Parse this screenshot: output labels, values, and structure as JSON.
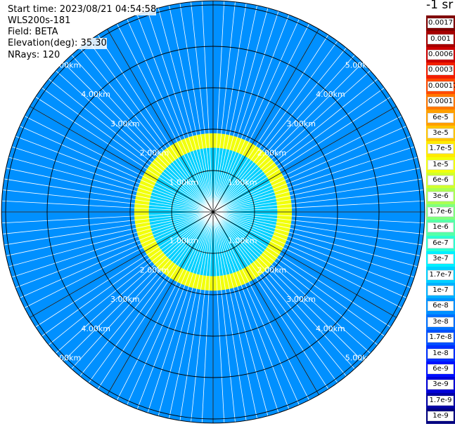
{
  "info": {
    "start_time": "Start time: 2023/08/21 04:54:58",
    "device": "WLS200s-181",
    "field": "Field: BETA",
    "elevation": "Elevation(deg): 35.30",
    "nrays": "NRays: 120"
  },
  "colorbar": {
    "title": "-1 sr",
    "labels": [
      "0.0017",
      "0.001",
      "0.0006",
      "0.0003",
      "0.00017",
      "0.0001",
      "6e-5",
      "3e-5",
      "1.7e-5",
      "1e-5",
      "6e-6",
      "3e-6",
      "1.7e-6",
      "1e-6",
      "6e-7",
      "3e-7",
      "1.7e-7",
      "1e-7",
      "6e-8",
      "3e-8",
      "1.7e-8",
      "1e-8",
      "6e-9",
      "3e-9",
      "1.7e-9",
      "1e-9"
    ],
    "colors": [
      "#7f0000",
      "#a50000",
      "#cc0000",
      "#f21e00",
      "#ff4a00",
      "#ff7800",
      "#ff9f00",
      "#ffc400",
      "#ffea00",
      "#f2ff0c",
      "#d0ff2e",
      "#aaff54",
      "#80ff7e",
      "#56ffa8",
      "#2cffd2",
      "#00f0ff",
      "#00d0ff",
      "#00b0ff",
      "#0090ff",
      "#0070ff",
      "#0050ff",
      "#0030ff",
      "#0010ff",
      "#0000d8",
      "#0000a4",
      "#000080"
    ]
  },
  "chart_data": {
    "type": "heatmap",
    "projection": "polar",
    "field": "BETA",
    "nrays": 120,
    "elevation_deg": 35.3,
    "ring_labels_km": [
      "1.00km",
      "2.00km",
      "3.00km",
      "4.00km",
      "5.00km"
    ],
    "ring_values_km": [
      1,
      2,
      3,
      4,
      5
    ],
    "max_range_km": 5.1,
    "units": "-1 sr",
    "regions": [
      {
        "range_km": [
          0,
          1.55
        ],
        "value": "1.7e-7"
      },
      {
        "range_km": [
          1.55,
          1.9
        ],
        "value": "1e-5"
      },
      {
        "range_km": [
          1.9,
          5.1
        ],
        "value": "6e-8"
      }
    ]
  }
}
